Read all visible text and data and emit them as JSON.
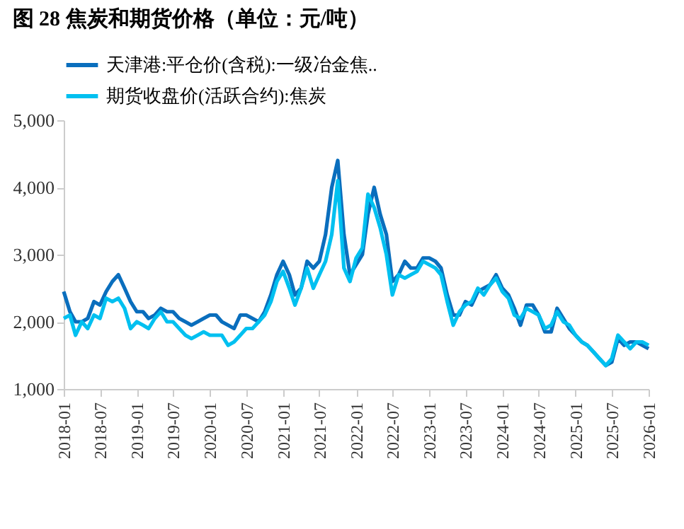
{
  "chart_data": {
    "type": "line",
    "title": "图 28 焦炭和期货价格（单位：元/吨）",
    "x": [
      "2018-01",
      "2018-02",
      "2018-03",
      "2018-04",
      "2018-05",
      "2018-06",
      "2018-07",
      "2018-08",
      "2018-09",
      "2018-10",
      "2018-11",
      "2018-12",
      "2019-01",
      "2019-02",
      "2019-03",
      "2019-04",
      "2019-05",
      "2019-06",
      "2019-07",
      "2019-08",
      "2019-09",
      "2019-10",
      "2019-11",
      "2019-12",
      "2020-01",
      "2020-02",
      "2020-03",
      "2020-04",
      "2020-05",
      "2020-06",
      "2020-07",
      "2020-08",
      "2020-09",
      "2020-10",
      "2020-11",
      "2020-12",
      "2021-01",
      "2021-02",
      "2021-03",
      "2021-04",
      "2021-05",
      "2021-06",
      "2021-07",
      "2021-08",
      "2021-09",
      "2021-10",
      "2021-11",
      "2021-12",
      "2022-01",
      "2022-02",
      "2022-03",
      "2022-04",
      "2022-05",
      "2022-06",
      "2022-07",
      "2022-08",
      "2022-09",
      "2022-10",
      "2022-11",
      "2022-12",
      "2023-01",
      "2023-02",
      "2023-03",
      "2023-04",
      "2023-05",
      "2023-06",
      "2023-07",
      "2023-08",
      "2023-09",
      "2023-10",
      "2023-11",
      "2023-12",
      "2024-01",
      "2024-02",
      "2024-03",
      "2024-04",
      "2024-05",
      "2024-06",
      "2024-07",
      "2024-08",
      "2024-09",
      "2024-10",
      "2024-11",
      "2024-12",
      "2025-01",
      "2025-02",
      "2025-03",
      "2025-04",
      "2025-05",
      "2025-06",
      "2025-07",
      "2025-08",
      "2025-09",
      "2025-10",
      "2025-11",
      "2025-12",
      "2026-01"
    ],
    "series": [
      {
        "name": "天津港:平仓价(含税):一级冶金焦..",
        "color": "#0a6ebd",
        "values": [
          2450,
          2150,
          2000,
          2000,
          2050,
          2300,
          2250,
          2450,
          2600,
          2700,
          2500,
          2300,
          2150,
          2150,
          2050,
          2100,
          2200,
          2150,
          2150,
          2050,
          2000,
          1950,
          2000,
          2050,
          2100,
          2100,
          2000,
          1950,
          1900,
          2100,
          2100,
          2050,
          2000,
          2150,
          2400,
          2700,
          2900,
          2700,
          2400,
          2500,
          2900,
          2800,
          2900,
          3300,
          4000,
          4400,
          3300,
          2700,
          2850,
          3000,
          3600,
          4000,
          3600,
          3300,
          2600,
          2700,
          2900,
          2800,
          2800,
          2950,
          2950,
          2900,
          2800,
          2400,
          2100,
          2100,
          2300,
          2250,
          2450,
          2500,
          2550,
          2700,
          2500,
          2400,
          2200,
          1950,
          2250,
          2250,
          2100,
          1850,
          1850,
          2200,
          2050,
          1900,
          1800,
          1700,
          1650,
          1550,
          1450,
          1350,
          1400,
          1750,
          1650,
          1700,
          1700,
          1650,
          1600
        ]
      },
      {
        "name": "期货收盘价(活跃合约):焦炭",
        "color": "#00c0f0",
        "values": [
          2050,
          2100,
          1800,
          2000,
          1900,
          2100,
          2050,
          2350,
          2300,
          2350,
          2200,
          1900,
          2000,
          1950,
          1900,
          2050,
          2150,
          2000,
          2000,
          1900,
          1800,
          1750,
          1800,
          1850,
          1800,
          1800,
          1800,
          1650,
          1700,
          1800,
          1900,
          1900,
          2000,
          2100,
          2300,
          2600,
          2750,
          2500,
          2250,
          2500,
          2800,
          2500,
          2700,
          2900,
          3300,
          4100,
          2800,
          2600,
          2950,
          3100,
          3900,
          3700,
          3400,
          3000,
          2400,
          2700,
          2650,
          2700,
          2750,
          2900,
          2850,
          2800,
          2700,
          2300,
          1950,
          2150,
          2250,
          2300,
          2500,
          2400,
          2550,
          2650,
          2450,
          2350,
          2100,
          2050,
          2200,
          2150,
          2100,
          1900,
          1950,
          2150,
          2000,
          1950,
          1800,
          1700,
          1650,
          1550,
          1450,
          1350,
          1450,
          1800,
          1700,
          1600,
          1700,
          1700,
          1650
        ]
      }
    ],
    "xlim": [
      "2018-01",
      "2026-01"
    ],
    "xticks": [
      "2018-01",
      "2018-07",
      "2019-01",
      "2019-07",
      "2020-01",
      "2020-07",
      "2021-01",
      "2021-07",
      "2022-01",
      "2022-07",
      "2023-01",
      "2023-07",
      "2024-01",
      "2024-07",
      "2025-01",
      "2025-07",
      "2026-01"
    ],
    "ylim": [
      1000,
      5000
    ],
    "yticks": [
      {
        "value": 1000,
        "label": "1,000"
      },
      {
        "value": 2000,
        "label": "2,000"
      },
      {
        "value": 3000,
        "label": "3,000"
      },
      {
        "value": 4000,
        "label": "4,000"
      },
      {
        "value": 5000,
        "label": "5,000"
      }
    ],
    "legend": "top left",
    "grid": false
  }
}
